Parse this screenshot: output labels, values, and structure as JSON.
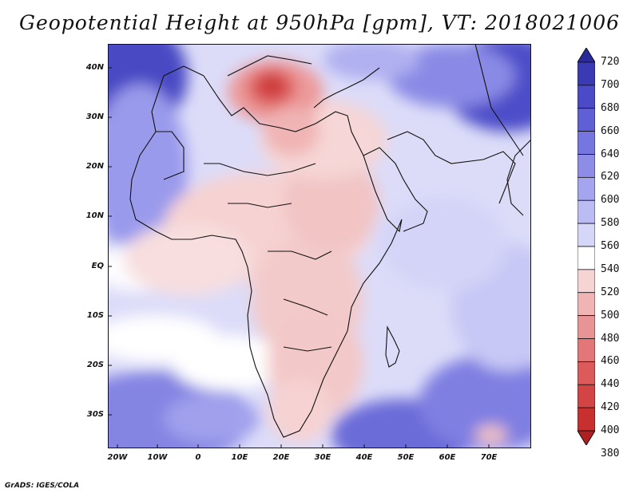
{
  "title": "Geopotential Height at 950hPa [gpm], VT: 2018021006",
  "footer": "GrADS: IGES/COLA",
  "axes": {
    "lat_labels": [
      "40N",
      "30N",
      "20N",
      "10N",
      "EQ",
      "10S",
      "20S",
      "30S"
    ],
    "lon_labels": [
      "20W",
      "10W",
      "0",
      "10E",
      "20E",
      "30E",
      "40E",
      "50E",
      "60E",
      "70E"
    ]
  },
  "colorbar": {
    "levels": [
      "720",
      "700",
      "680",
      "660",
      "640",
      "620",
      "600",
      "580",
      "560",
      "540",
      "520",
      "500",
      "480",
      "460",
      "440",
      "420",
      "400",
      "380"
    ],
    "colors": [
      "#2a2a9a",
      "#3a3ab5",
      "#4b4bc8",
      "#5f5fd6",
      "#7676e0",
      "#8d8de8",
      "#a4a4ef",
      "#bcbcf4",
      "#d6d6f8",
      "#ffffff",
      "#f6d4d4",
      "#f0b4b4",
      "#e99494",
      "#e37777",
      "#dc5a5a",
      "#d34444",
      "#c83030",
      "#b02020"
    ]
  }
}
